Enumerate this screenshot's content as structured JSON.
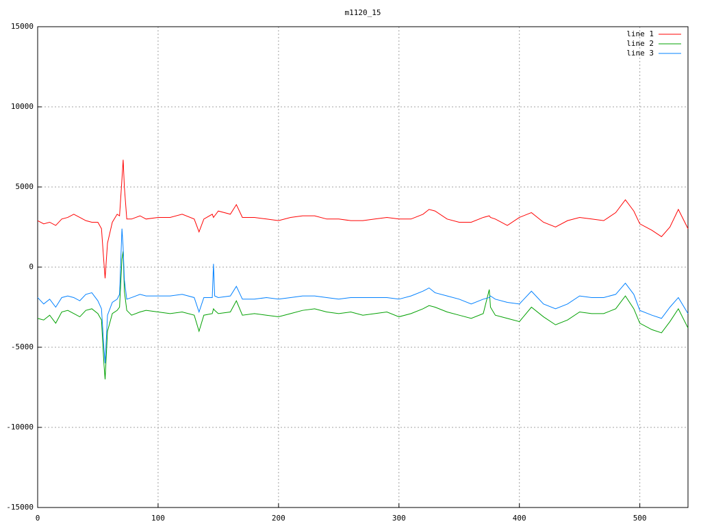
{
  "chart_data": {
    "type": "line",
    "title": "m1120_15",
    "x": [
      0,
      5,
      10,
      15,
      20,
      25,
      30,
      35,
      40,
      45,
      50,
      53,
      55,
      56,
      58,
      62,
      66,
      68,
      70,
      71,
      72,
      74,
      78,
      85,
      90,
      100,
      110,
      120,
      130,
      134,
      138,
      145,
      146,
      147,
      150,
      160,
      165,
      170,
      180,
      190,
      200,
      210,
      220,
      230,
      240,
      250,
      260,
      270,
      280,
      290,
      300,
      310,
      320,
      325,
      330,
      340,
      350,
      360,
      370,
      375,
      376,
      380,
      390,
      400,
      410,
      420,
      430,
      440,
      450,
      460,
      470,
      480,
      488,
      495,
      500,
      510,
      518,
      525,
      532,
      540
    ],
    "series": [
      {
        "name": "line 1",
        "color": "#ff0000",
        "values": [
          2900,
          2700,
          2800,
          2600,
          3000,
          3100,
          3300,
          3100,
          2900,
          2800,
          2800,
          2400,
          300,
          -700,
          1500,
          2800,
          3300,
          3200,
          5500,
          6700,
          5000,
          3000,
          3000,
          3200,
          3000,
          3100,
          3100,
          3300,
          3000,
          2200,
          3000,
          3300,
          3100,
          3200,
          3500,
          3300,
          3900,
          3100,
          3100,
          3000,
          2900,
          3100,
          3200,
          3200,
          3000,
          3000,
          2900,
          2900,
          3000,
          3100,
          3000,
          3000,
          3300,
          3600,
          3500,
          3000,
          2800,
          2800,
          3100,
          3200,
          3100,
          3000,
          2600,
          3100,
          3400,
          2800,
          2500,
          2900,
          3100,
          3000,
          2900,
          3400,
          4200,
          3500,
          2700,
          2300,
          1900,
          2500,
          3600,
          2400
        ]
      },
      {
        "name": "line 2",
        "color": "#00a000",
        "values": [
          -3200,
          -3300,
          -3000,
          -3500,
          -2800,
          -2700,
          -2900,
          -3100,
          -2700,
          -2600,
          -2900,
          -3300,
          -6000,
          -7000,
          -4000,
          -2900,
          -2700,
          -2500,
          500,
          1000,
          -1500,
          -2700,
          -3000,
          -2800,
          -2700,
          -2800,
          -2900,
          -2800,
          -3000,
          -4000,
          -3000,
          -2900,
          -2600,
          -2700,
          -2900,
          -2800,
          -2100,
          -3000,
          -2900,
          -3000,
          -3100,
          -2900,
          -2700,
          -2600,
          -2800,
          -2900,
          -2800,
          -3000,
          -2900,
          -2800,
          -3100,
          -2900,
          -2600,
          -2400,
          -2500,
          -2800,
          -3000,
          -3200,
          -2900,
          -1400,
          -2500,
          -3000,
          -3200,
          -3400,
          -2500,
          -3100,
          -3600,
          -3300,
          -2800,
          -2900,
          -2900,
          -2600,
          -1800,
          -2600,
          -3500,
          -3900,
          -4100,
          -3400,
          -2600,
          -3800
        ]
      },
      {
        "name": "line 3",
        "color": "#0080ff",
        "values": [
          -1900,
          -2300,
          -2000,
          -2500,
          -1900,
          -1800,
          -1900,
          -2100,
          -1700,
          -1600,
          -2100,
          -2600,
          -5000,
          -6000,
          -3000,
          -2200,
          -2000,
          -1700,
          2400,
          1200,
          -800,
          -2000,
          -1900,
          -1700,
          -1800,
          -1800,
          -1800,
          -1700,
          -1900,
          -2800,
          -1900,
          -1900,
          200,
          -1800,
          -1900,
          -1800,
          -1200,
          -2000,
          -2000,
          -1900,
          -2000,
          -1900,
          -1800,
          -1800,
          -1900,
          -2000,
          -1900,
          -1900,
          -1900,
          -1900,
          -2000,
          -1800,
          -1500,
          -1300,
          -1600,
          -1800,
          -2000,
          -2300,
          -2000,
          -1900,
          -1800,
          -2000,
          -2200,
          -2300,
          -1500,
          -2300,
          -2600,
          -2300,
          -1800,
          -1900,
          -1900,
          -1700,
          -1000,
          -1700,
          -2700,
          -3000,
          -3200,
          -2500,
          -1900,
          -2900
        ]
      }
    ],
    "xlim": [
      0,
      540
    ],
    "xticks": [
      0,
      100,
      200,
      300,
      400,
      500
    ],
    "ylim": [
      -15000,
      15000
    ],
    "yticks": [
      -15000,
      -10000,
      -5000,
      0,
      5000,
      10000,
      15000
    ],
    "grid": true,
    "legend": "top-right"
  }
}
